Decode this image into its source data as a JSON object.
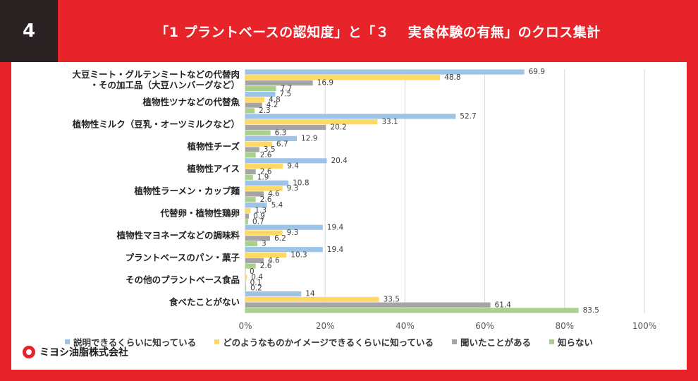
{
  "header": {
    "number": "4",
    "title": "「1 プラントベースの認知度」と「３　 実食体験の有無」のクロス集計"
  },
  "brand": {
    "name": "ミヨシ油脂株式会社"
  },
  "colors": {
    "background": "#e8242b",
    "number_box": "#2a2223",
    "series": [
      "#9dc3e6",
      "#ffd966",
      "#a5a5a5",
      "#a9d18e"
    ]
  },
  "chart_data": {
    "type": "bar",
    "orientation": "horizontal",
    "title": "「1 プラントベースの認知度」と「３　 実食体験の有無」のクロス集計",
    "categories": [
      [
        "大豆ミート・グルテンミートなどの代替肉",
        "・その加工品（大豆ハンバーグなど）"
      ],
      [
        "植物性ツナなどの代替魚"
      ],
      [
        "植物性ミルク（豆乳・オーツミルクなど）"
      ],
      [
        "植物性チーズ"
      ],
      [
        "植物性アイス"
      ],
      [
        "植物性ラーメン・カップ麺"
      ],
      [
        "代替卵・植物性鶏卵"
      ],
      [
        "植物性マヨネーズなどの調味料"
      ],
      [
        "プラントベースのパン・菓子"
      ],
      [
        "その他のプラントベース食品"
      ],
      [
        "食べたことがない"
      ]
    ],
    "series": [
      {
        "name": "説明できるくらいに知っている",
        "values": [
          69.9,
          7.5,
          52.7,
          12.9,
          20.4,
          10.8,
          5.4,
          19.4,
          19.4,
          0,
          14
        ]
      },
      {
        "name": "どのようなものかイメージできるくらいに知っている",
        "values": [
          48.8,
          4.8,
          33.1,
          6.7,
          9.4,
          9.3,
          1.3,
          9.3,
          10.3,
          0.4,
          33.5
        ]
      },
      {
        "name": "聞いたことがある",
        "values": [
          16.9,
          4.2,
          20.2,
          3.5,
          2.6,
          4.6,
          0.9,
          6.2,
          4.6,
          0.1,
          61.4
        ]
      },
      {
        "name": "知らない",
        "values": [
          7.7,
          2.3,
          6.3,
          2.6,
          1.9,
          2.6,
          0.7,
          3,
          2.6,
          0.2,
          83.5
        ]
      }
    ],
    "xlim": [
      0,
      100
    ],
    "xticks": [
      "0%",
      "20%",
      "40%",
      "60%",
      "80%",
      "100%"
    ],
    "grid": true,
    "legend_position": "bottom"
  }
}
